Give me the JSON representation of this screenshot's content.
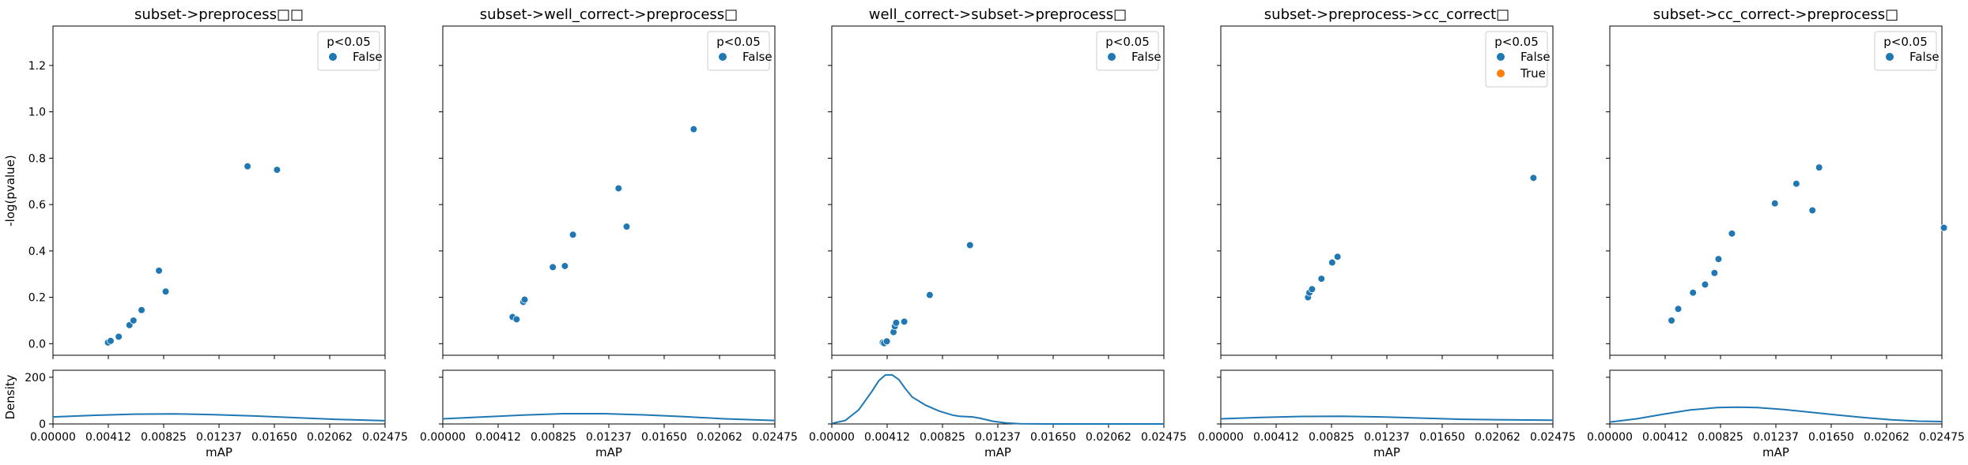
{
  "chart_data": [
    {
      "type": "scatter",
      "title": "subset->preprocess□□",
      "xlabel": "mAP",
      "ylabel": "-log(pvalue)",
      "xlim": [
        0,
        0.02475
      ],
      "ylim": [
        -0.05,
        1.37
      ],
      "xticks": [
        "0.00000",
        "0.00412",
        "0.00825",
        "0.01237",
        "0.01650",
        "0.02062",
        "0.02475"
      ],
      "yticks": [
        "0.0",
        "0.2",
        "0.4",
        "0.6",
        "0.8",
        "1.0",
        "1.2"
      ],
      "legend": {
        "title": "p<0.05",
        "entries": [
          "False"
        ],
        "placement": "top-right"
      },
      "series": [
        {
          "name": "False",
          "color": "#1f77b4",
          "points": [
            [
              0.0041,
              0.005
            ],
            [
              0.0043,
              0.012
            ],
            [
              0.0049,
              0.03
            ],
            [
              0.0057,
              0.08
            ],
            [
              0.006,
              0.1
            ],
            [
              0.0066,
              0.145
            ],
            [
              0.0079,
              0.315
            ],
            [
              0.0084,
              0.225
            ],
            [
              0.0145,
              0.765
            ],
            [
              0.0167,
              0.75
            ]
          ]
        }
      ],
      "density": {
        "ylabel": "Density",
        "yticks": [
          "0",
          "200"
        ],
        "ylim": [
          0,
          230
        ],
        "curve": [
          [
            0,
            30
          ],
          [
            0.003,
            37
          ],
          [
            0.006,
            42
          ],
          [
            0.009,
            43
          ],
          [
            0.012,
            40
          ],
          [
            0.015,
            34
          ],
          [
            0.018,
            27
          ],
          [
            0.021,
            20
          ],
          [
            0.02475,
            14
          ]
        ]
      }
    },
    {
      "type": "scatter",
      "title": "subset->well_correct->preprocess□",
      "xlabel": "mAP",
      "ylabel": "",
      "xlim": [
        0,
        0.02475
      ],
      "ylim": [
        -0.05,
        1.37
      ],
      "xticks": [
        "0.00000",
        "0.00412",
        "0.00825",
        "0.01237",
        "0.01650",
        "0.02062",
        "0.02475"
      ],
      "yticks": [],
      "legend": {
        "title": "p<0.05",
        "entries": [
          "False"
        ],
        "placement": "top-right"
      },
      "series": [
        {
          "name": "False",
          "color": "#1f77b4",
          "points": [
            [
              0.0052,
              0.115
            ],
            [
              0.0055,
              0.105
            ],
            [
              0.006,
              0.18
            ],
            [
              0.0061,
              0.19
            ],
            [
              0.0082,
              0.33
            ],
            [
              0.0091,
              0.335
            ],
            [
              0.0097,
              0.47
            ],
            [
              0.0131,
              0.67
            ],
            [
              0.0137,
              0.505
            ],
            [
              0.0187,
              0.925
            ]
          ]
        }
      ],
      "density": {
        "ylabel": "",
        "yticks": [],
        "ylim": [
          0,
          230
        ],
        "curve": [
          [
            0,
            22
          ],
          [
            0.003,
            30
          ],
          [
            0.006,
            38
          ],
          [
            0.009,
            44
          ],
          [
            0.012,
            44
          ],
          [
            0.015,
            39
          ],
          [
            0.018,
            31
          ],
          [
            0.021,
            22
          ],
          [
            0.02475,
            15
          ]
        ]
      }
    },
    {
      "type": "scatter",
      "title": "well_correct->subset->preprocess□",
      "xlabel": "mAP",
      "ylabel": "",
      "xlim": [
        0,
        0.02475
      ],
      "ylim": [
        -0.05,
        1.37
      ],
      "xticks": [
        "0.00000",
        "0.00412",
        "0.00825",
        "0.01237",
        "0.01650",
        "0.02062",
        "0.02475"
      ],
      "yticks": [],
      "legend": {
        "title": "p<0.05",
        "entries": [
          "False"
        ],
        "placement": "top-right"
      },
      "series": [
        {
          "name": "False",
          "color": "#1f77b4",
          "points": [
            [
              0.0038,
              0.005
            ],
            [
              0.0039,
              0.002
            ],
            [
              0.0041,
              0.01
            ],
            [
              0.0046,
              0.05
            ],
            [
              0.0047,
              0.075
            ],
            [
              0.0048,
              0.09
            ],
            [
              0.0054,
              0.095
            ],
            [
              0.0073,
              0.21
            ],
            [
              0.0103,
              0.425
            ]
          ]
        }
      ],
      "density": {
        "ylabel": "",
        "yticks": [],
        "ylim": [
          0,
          230
        ],
        "curve": [
          [
            0,
            2
          ],
          [
            0.001,
            15
          ],
          [
            0.002,
            60
          ],
          [
            0.003,
            140
          ],
          [
            0.0035,
            185
          ],
          [
            0.004,
            210
          ],
          [
            0.0045,
            210
          ],
          [
            0.005,
            190
          ],
          [
            0.0055,
            150
          ],
          [
            0.006,
            115
          ],
          [
            0.007,
            80
          ],
          [
            0.008,
            55
          ],
          [
            0.009,
            38
          ],
          [
            0.0095,
            33
          ],
          [
            0.0105,
            30
          ],
          [
            0.011,
            25
          ],
          [
            0.012,
            12
          ],
          [
            0.013,
            4
          ],
          [
            0.014,
            1
          ],
          [
            0.016,
            0
          ],
          [
            0.02475,
            0
          ]
        ]
      }
    },
    {
      "type": "scatter",
      "title": "subset->preprocess->cc_correct□",
      "xlabel": "mAP",
      "ylabel": "",
      "xlim": [
        0,
        0.02475
      ],
      "ylim": [
        -0.05,
        1.37
      ],
      "xticks": [
        "0.00000",
        "0.00412",
        "0.00825",
        "0.01237",
        "0.01650",
        "0.02062",
        "0.02475"
      ],
      "yticks": [],
      "legend": {
        "title": "p<0.05",
        "entries": [
          "False",
          "True"
        ],
        "placement": "top-right"
      },
      "series": [
        {
          "name": "False",
          "color": "#1f77b4",
          "points": [
            [
              0.0065,
              0.2
            ],
            [
              0.0066,
              0.22
            ],
            [
              0.0068,
              0.235
            ],
            [
              0.0075,
              0.28
            ],
            [
              0.0083,
              0.35
            ],
            [
              0.0087,
              0.375
            ],
            [
              0.0233,
              0.715
            ]
          ]
        },
        {
          "name": "True",
          "color": "#ff7f0e",
          "points": []
        }
      ],
      "density": {
        "ylabel": "",
        "yticks": [],
        "ylim": [
          0,
          230
        ],
        "curve": [
          [
            0,
            22
          ],
          [
            0.003,
            28
          ],
          [
            0.006,
            32
          ],
          [
            0.009,
            33
          ],
          [
            0.012,
            30
          ],
          [
            0.015,
            25
          ],
          [
            0.018,
            20
          ],
          [
            0.021,
            18
          ],
          [
            0.023,
            17
          ],
          [
            0.02475,
            16
          ]
        ]
      }
    },
    {
      "type": "scatter",
      "title": "subset->cc_correct->preprocess□",
      "xlabel": "mAP",
      "ylabel": "",
      "xlim": [
        0,
        0.02475
      ],
      "ylim": [
        -0.05,
        1.37
      ],
      "xticks": [
        "0.00000",
        "0.00412",
        "0.00825",
        "0.01237",
        "0.01650",
        "0.02062",
        "0.02475"
      ],
      "yticks": [],
      "legend": {
        "title": "p<0.05",
        "entries": [
          "False"
        ],
        "placement": "top-right"
      },
      "series": [
        {
          "name": "False",
          "color": "#1f77b4",
          "points": [
            [
              0.0046,
              0.1
            ],
            [
              0.0051,
              0.15
            ],
            [
              0.0062,
              0.22
            ],
            [
              0.0071,
              0.255
            ],
            [
              0.0078,
              0.305
            ],
            [
              0.0081,
              0.365
            ],
            [
              0.0091,
              0.475
            ],
            [
              0.0123,
              0.605
            ],
            [
              0.0139,
              0.69
            ],
            [
              0.0151,
              0.575
            ],
            [
              0.0156,
              0.76
            ],
            [
              0.0249,
              0.5
            ]
          ]
        }
      ],
      "density": {
        "ylabel": "",
        "yticks": [],
        "ylim": [
          0,
          230
        ],
        "curve": [
          [
            0,
            8
          ],
          [
            0.002,
            22
          ],
          [
            0.004,
            42
          ],
          [
            0.006,
            60
          ],
          [
            0.008,
            70
          ],
          [
            0.0095,
            72
          ],
          [
            0.011,
            70
          ],
          [
            0.013,
            62
          ],
          [
            0.015,
            50
          ],
          [
            0.017,
            38
          ],
          [
            0.019,
            27
          ],
          [
            0.021,
            18
          ],
          [
            0.023,
            12
          ],
          [
            0.02475,
            10
          ]
        ]
      }
    }
  ]
}
